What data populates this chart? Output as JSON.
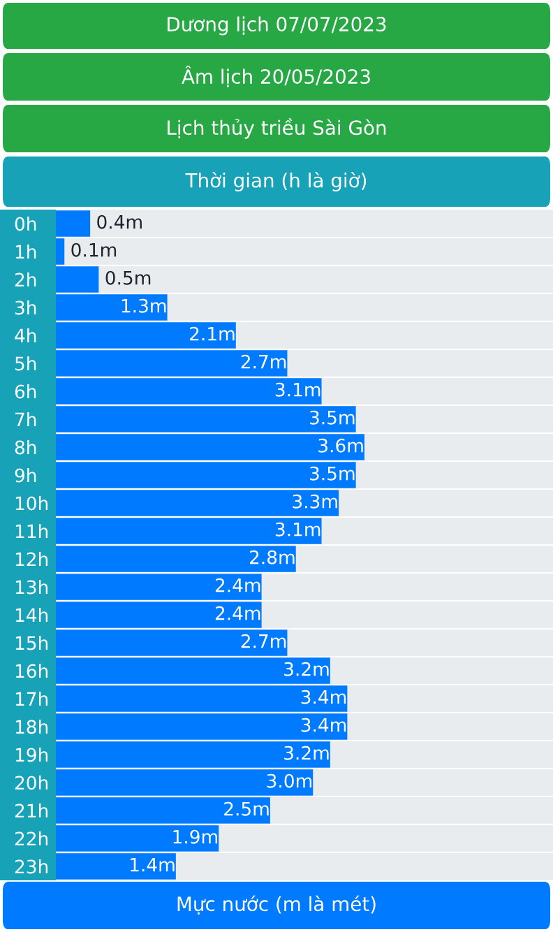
{
  "chart_data": {
    "type": "bar",
    "orientation": "horizontal",
    "title": "Dương lịch 07/07/2023",
    "subtitle": "Âm lịch 20/05/2023",
    "annotations": [
      "Lịch thủy triều Sài Gòn"
    ],
    "ylabel": "Thời gian (h là giờ)",
    "xlabel": "Mực nước (m là mét)",
    "categories": [
      "0h",
      "1h",
      "2h",
      "3h",
      "4h",
      "5h",
      "6h",
      "7h",
      "8h",
      "9h",
      "10h",
      "11h",
      "12h",
      "13h",
      "14h",
      "15h",
      "16h",
      "17h",
      "18h",
      "19h",
      "20h",
      "21h",
      "22h",
      "23h"
    ],
    "values": [
      0.4,
      0.1,
      0.5,
      1.3,
      2.1,
      2.7,
      3.1,
      3.5,
      3.6,
      3.5,
      3.3,
      3.1,
      2.8,
      2.4,
      2.4,
      2.7,
      3.2,
      3.4,
      3.4,
      3.2,
      3.0,
      2.5,
      1.9,
      1.4
    ],
    "value_labels": [
      "0.4m",
      "0.1m",
      "0.5m",
      "1.3m",
      "2.1m",
      "2.7m",
      "3.1m",
      "3.5m",
      "3.6m",
      "3.5m",
      "3.3m",
      "3.1m",
      "2.8m",
      "2.4m",
      "2.4m",
      "2.7m",
      "3.2m",
      "3.4m",
      "3.4m",
      "3.2m",
      "3.0m",
      "2.5m",
      "1.9m",
      "1.4m"
    ],
    "color": "#007bff",
    "xlim": [
      0,
      5.8
    ],
    "tick_labels": "y",
    "grid": false,
    "legend": false
  }
}
